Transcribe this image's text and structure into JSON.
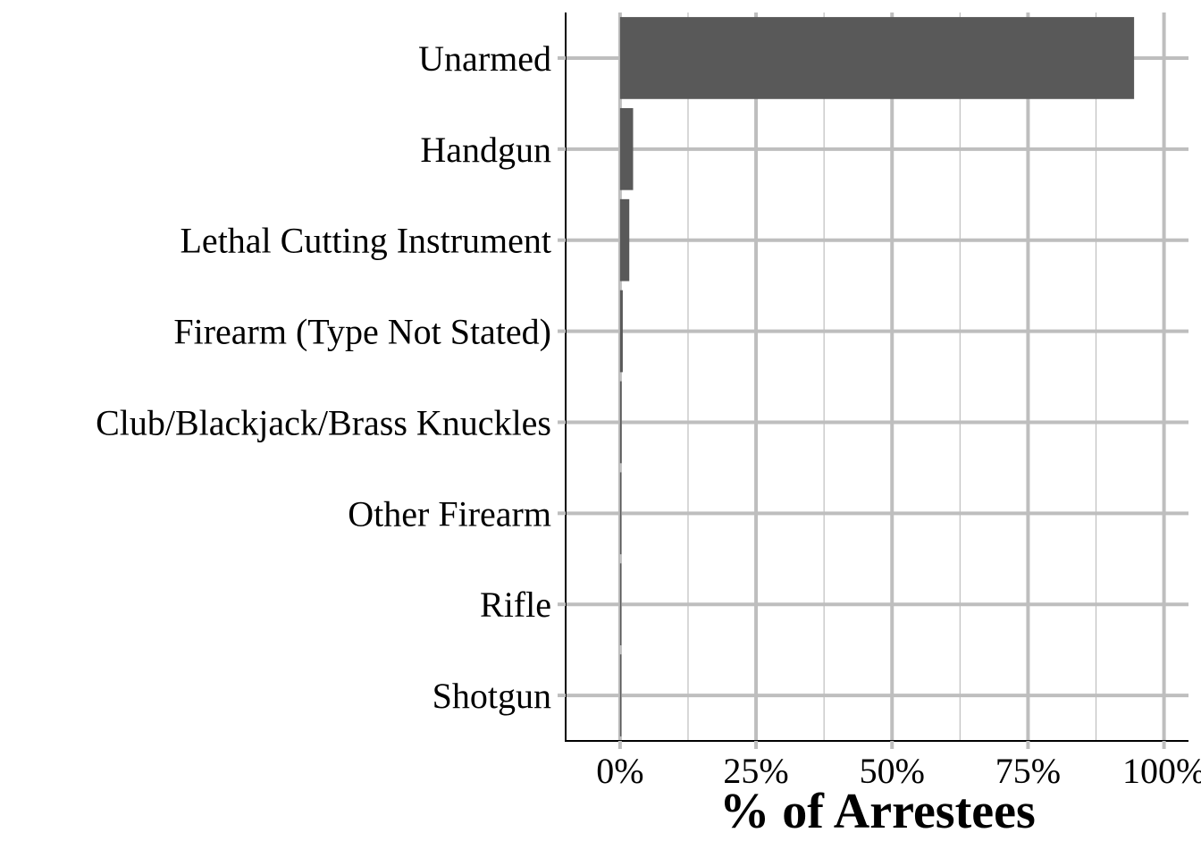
{
  "chart_data": {
    "type": "bar",
    "orientation": "horizontal",
    "categories": [
      "Unarmed",
      "Handgun",
      "Lethal Cutting Instrument",
      "Firearm (Type Not Stated)",
      "Club/Blackjack/Brass Knuckles",
      "Other Firearm",
      "Rifle",
      "Shotgun"
    ],
    "values": [
      94.5,
      2.4,
      1.7,
      0.5,
      0.3,
      0.25,
      0.2,
      0.15
    ],
    "xlabel": "% of Arrestees",
    "xlim": [
      -10,
      104.5
    ],
    "xticks": [
      0,
      25,
      50,
      75,
      100
    ],
    "xtick_labels": [
      "0%",
      "25%",
      "50%",
      "75%",
      "100%"
    ],
    "grid": true,
    "colors": {
      "bar": "#595959",
      "grid": "#bebebe",
      "axis": "#000000"
    }
  }
}
